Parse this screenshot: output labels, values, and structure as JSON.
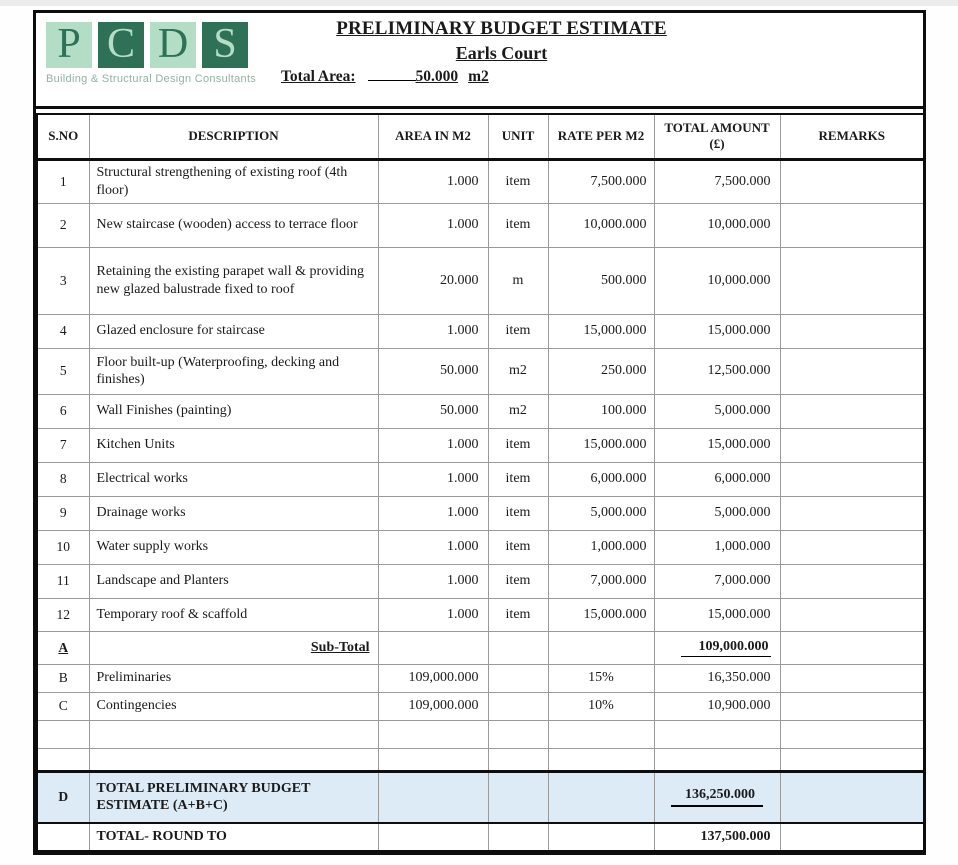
{
  "logo": {
    "letters": [
      "P",
      "C",
      "D",
      "S"
    ],
    "tagline": "Building & Structural Design Consultants",
    "colors": {
      "light_green": "#b3dec5",
      "dark_green": "#2e7156",
      "tagline_text": "#93b1a3"
    }
  },
  "header": {
    "title": "PRELIMINARY BUDGET ESTIMATE",
    "subtitle": "Earls Court",
    "total_area_label": "Total Area:",
    "total_area_value": "50.000",
    "total_area_unit": "m2"
  },
  "table": {
    "columns": [
      "S.NO",
      "DESCRIPTION",
      "AREA IN M2",
      "UNIT",
      "RATE PER M2",
      "TOTAL AMOUNT (£)",
      "REMARKS"
    ],
    "highlight_row_color": "#ddebf7",
    "rows": [
      {
        "type": "item",
        "sno": "1",
        "desc": "Structural strengthening of existing roof (4th floor)",
        "area": "1.000",
        "unit": "item",
        "rate": "7,500.000",
        "total": "7,500.000",
        "remarks": ""
      },
      {
        "type": "item",
        "sno": "2",
        "desc": "New staircase (wooden) access to terrace floor",
        "area": "1.000",
        "unit": "item",
        "rate": "10,000.000",
        "total": "10,000.000",
        "remarks": ""
      },
      {
        "type": "item",
        "sno": "3",
        "desc": "Retaining the existing parapet wall & providing new glazed balustrade fixed to roof",
        "area": "20.000",
        "unit": "m",
        "rate": "500.000",
        "total": "10,000.000",
        "remarks": ""
      },
      {
        "type": "item",
        "sno": "4",
        "desc": "Glazed enclosure for staircase",
        "area": "1.000",
        "unit": "item",
        "rate": "15,000.000",
        "total": "15,000.000",
        "remarks": ""
      },
      {
        "type": "item",
        "sno": "5",
        "desc": "Floor built-up (Waterproofing, decking and finishes)",
        "area": "50.000",
        "unit": "m2",
        "rate": "250.000",
        "total": "12,500.000",
        "remarks": ""
      },
      {
        "type": "item",
        "sno": "6",
        "desc": "Wall Finishes (painting)",
        "area": "50.000",
        "unit": "m2",
        "rate": "100.000",
        "total": "5,000.000",
        "remarks": ""
      },
      {
        "type": "item",
        "sno": "7",
        "desc": "Kitchen Units",
        "area": "1.000",
        "unit": "item",
        "rate": "15,000.000",
        "total": "15,000.000",
        "remarks": ""
      },
      {
        "type": "item",
        "sno": "8",
        "desc": "Electrical works",
        "area": "1.000",
        "unit": "item",
        "rate": "6,000.000",
        "total": "6,000.000",
        "remarks": ""
      },
      {
        "type": "item",
        "sno": "9",
        "desc": "Drainage works",
        "area": "1.000",
        "unit": "item",
        "rate": "5,000.000",
        "total": "5,000.000",
        "remarks": ""
      },
      {
        "type": "item",
        "sno": "10",
        "desc": "Water supply works",
        "area": "1.000",
        "unit": "item",
        "rate": "1,000.000",
        "total": "1,000.000",
        "remarks": ""
      },
      {
        "type": "item",
        "sno": "11",
        "desc": "Landscape and Planters",
        "area": "1.000",
        "unit": "item",
        "rate": "7,000.000",
        "total": "7,000.000",
        "remarks": ""
      },
      {
        "type": "item",
        "sno": "12",
        "desc": "Temporary roof & scaffold",
        "area": "1.000",
        "unit": "item",
        "rate": "15,000.000",
        "total": "15,000.000",
        "remarks": ""
      },
      {
        "type": "subtotal",
        "sno": "A",
        "desc": "Sub-Total",
        "area": "",
        "unit": "",
        "rate": "",
        "total": "109,000.000",
        "remarks": ""
      },
      {
        "type": "calc",
        "sno": "B",
        "desc": "Preliminaries",
        "area": "109,000.000",
        "unit": "",
        "rate": "15%",
        "total": "16,350.000",
        "remarks": ""
      },
      {
        "type": "calc",
        "sno": "C",
        "desc": "Contingencies",
        "area": "109,000.000",
        "unit": "",
        "rate": "10%",
        "total": "10,900.000",
        "remarks": ""
      },
      {
        "type": "blank",
        "sno": "",
        "desc": "",
        "area": "",
        "unit": "",
        "rate": "",
        "total": "",
        "remarks": ""
      },
      {
        "type": "blank",
        "sno": "",
        "desc": "",
        "area": "",
        "unit": "",
        "rate": "",
        "total": "",
        "remarks": ""
      },
      {
        "type": "grand",
        "sno": "D",
        "desc": "TOTAL PRELIMINARY BUDGET ESTIMATE (A+B+C)",
        "area": "",
        "unit": "",
        "rate": "",
        "total": "136,250.000",
        "remarks": ""
      },
      {
        "type": "round",
        "sno": "",
        "desc": "TOTAL- ROUND TO",
        "area": "",
        "unit": "",
        "rate": "",
        "total": "137,500.000",
        "remarks": ""
      }
    ]
  }
}
